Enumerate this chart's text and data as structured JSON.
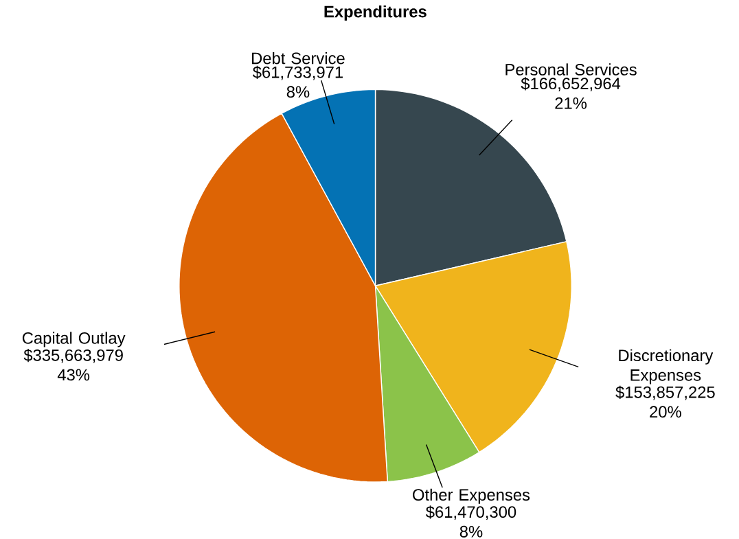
{
  "chart_data": {
    "type": "pie",
    "title": "Expenditures",
    "categories": [
      "Personal Services",
      "Discretionary Expenses",
      "Other Expenses",
      "Capital Outlay",
      "Debt Service"
    ],
    "values": [
      166652964,
      153857225,
      61470300,
      335663979,
      61733971
    ],
    "colors": [
      "#36474f",
      "#f0b41c",
      "#8bc34a",
      "#dd6405",
      "#0472b4"
    ],
    "value_labels": [
      "$166,652,964 21%",
      "$153,857,225 20%",
      "$61,470,300 8%",
      "$335,663,979 43%",
      "$61,733,971 8%"
    ]
  }
}
